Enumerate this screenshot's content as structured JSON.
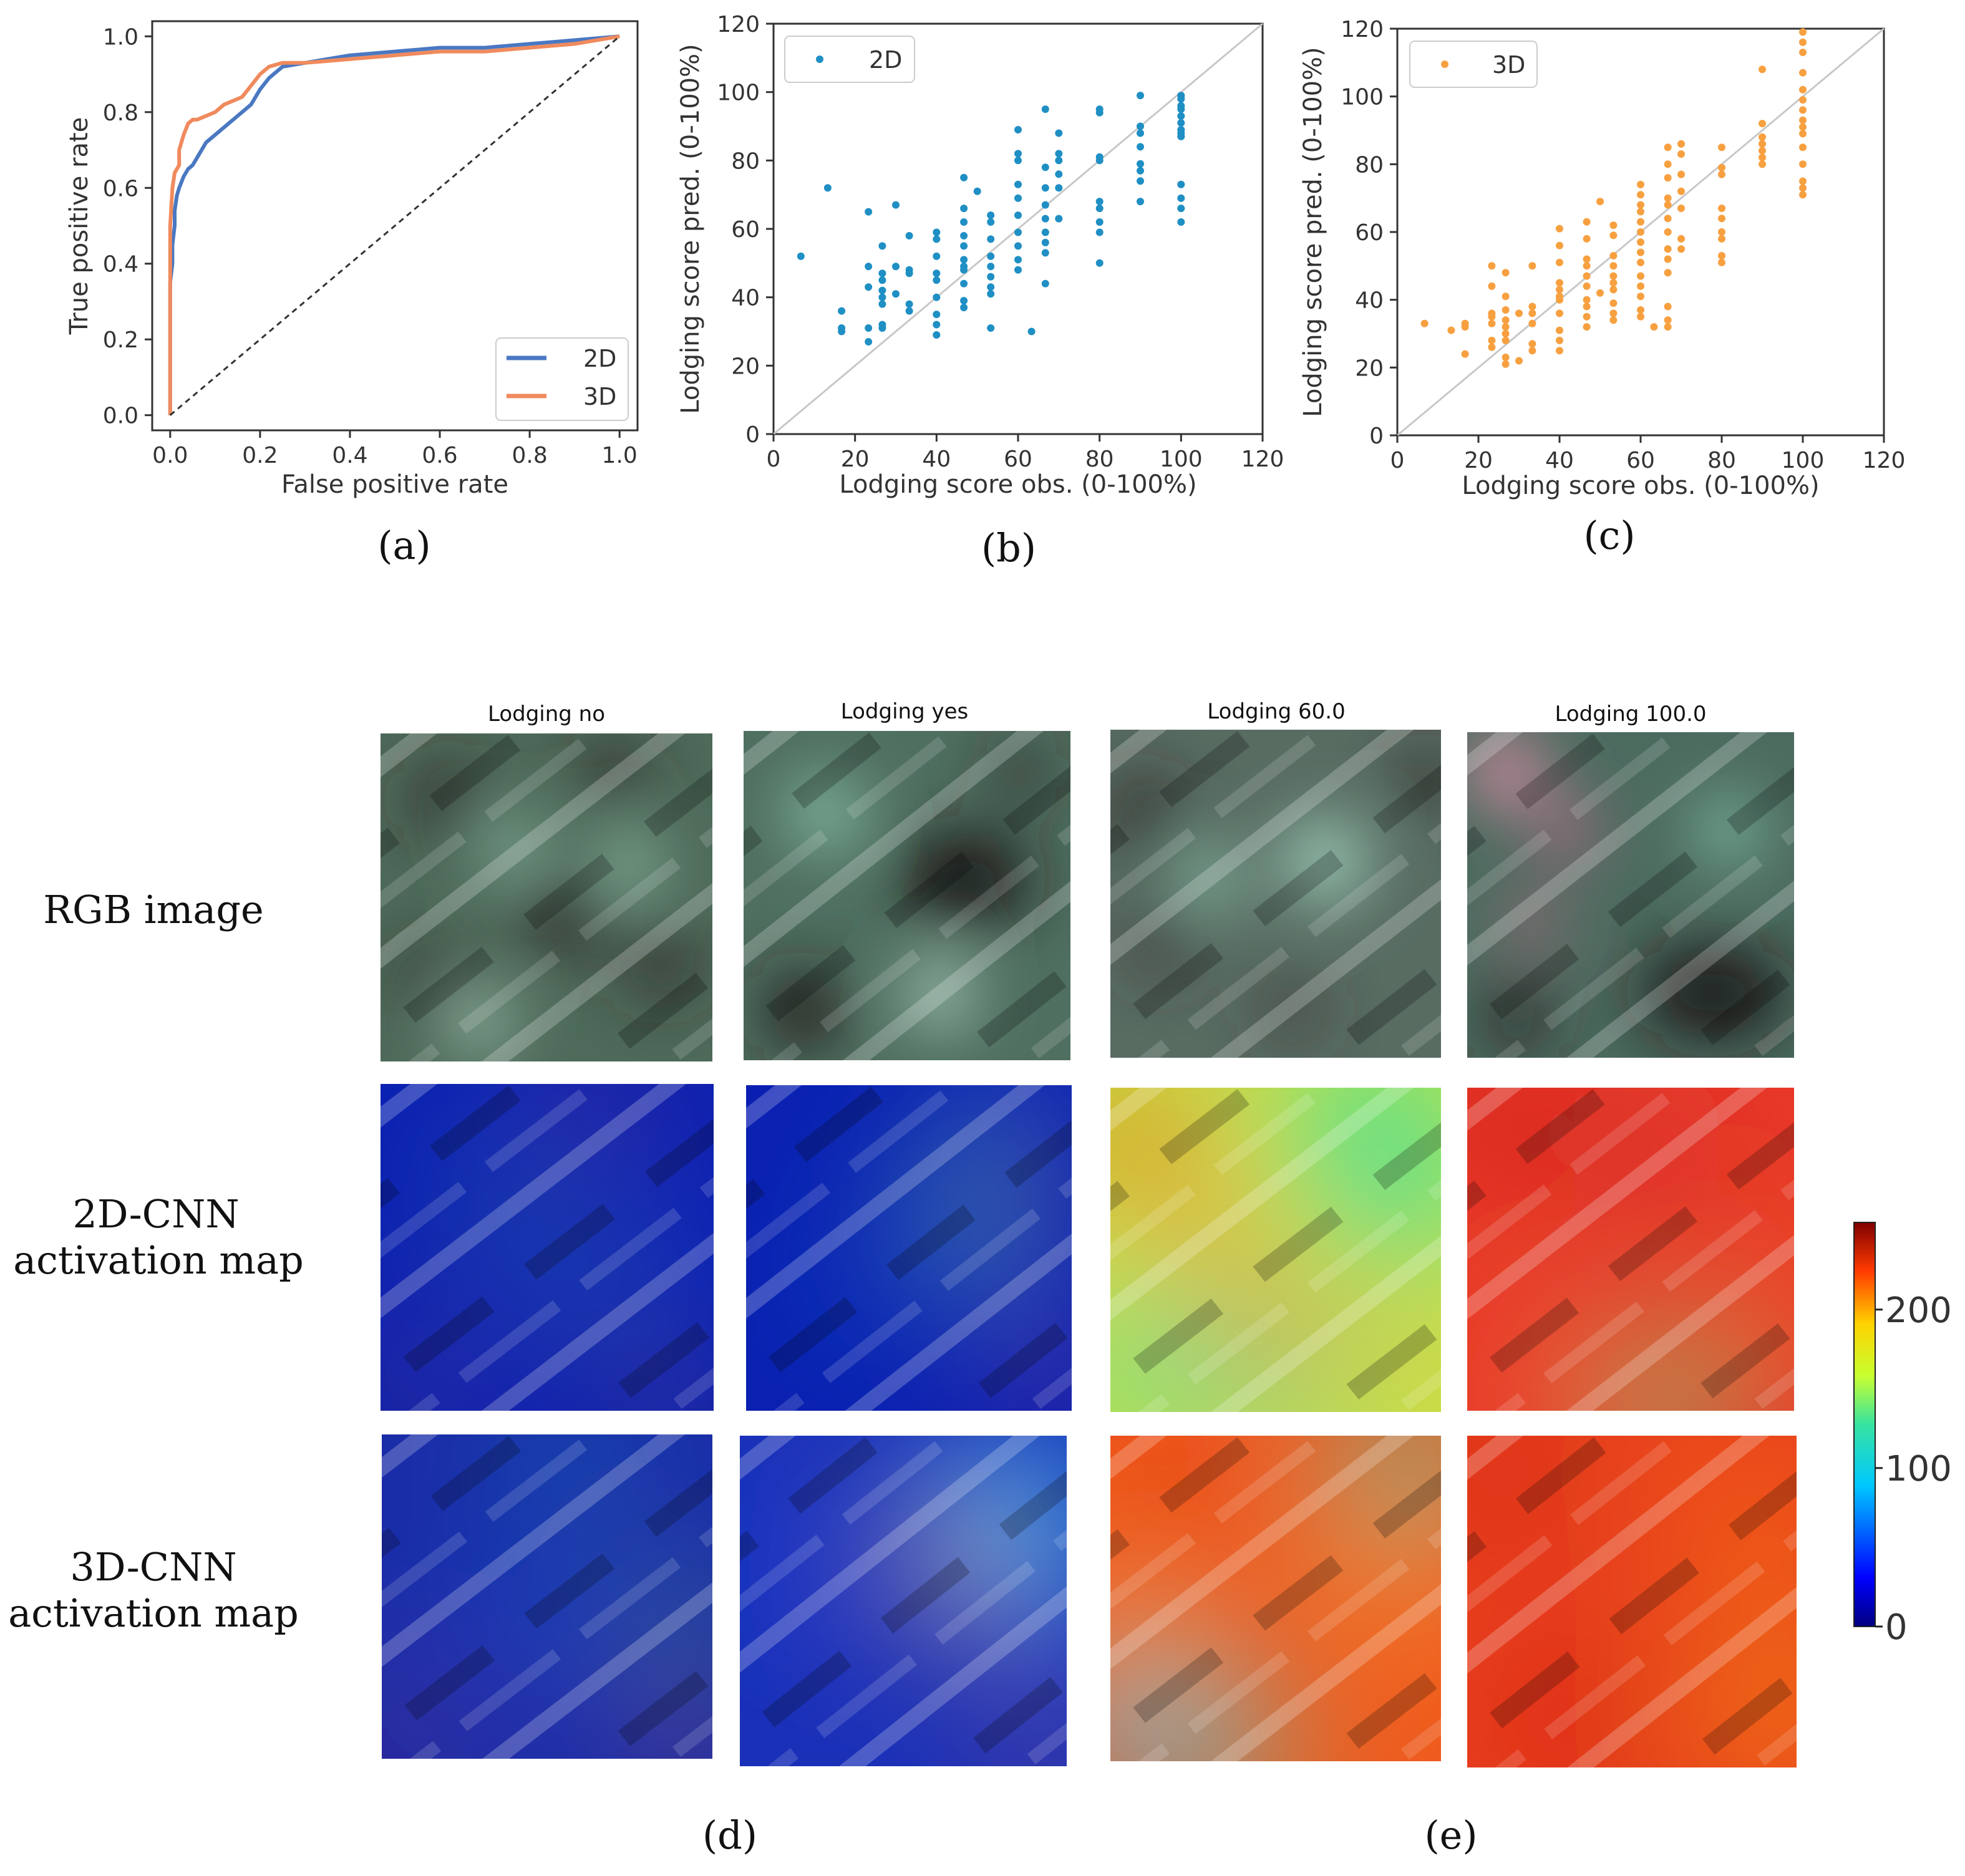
{
  "captions": {
    "a": "(a)",
    "b": "(b)",
    "c": "(c)",
    "d": "(d)",
    "e": "(e)"
  },
  "colors": {
    "series_2d_line": "#4a78c2",
    "series_3d_line": "#f08a5d",
    "scatter_2d": "#1f8fc4",
    "scatter_3d": "#f7a040",
    "diagonal": "#c8c8c8",
    "chance": "#333333"
  },
  "chart_data": [
    {
      "id": "roc",
      "type": "line",
      "title": "",
      "xlabel": "False positive rate",
      "ylabel": "True positive rate",
      "xlim": [
        -0.04,
        1.04
      ],
      "ylim": [
        -0.04,
        1.04
      ],
      "xticks": [
        0.0,
        0.2,
        0.4,
        0.6,
        0.8,
        1.0
      ],
      "yticks": [
        0.0,
        0.2,
        0.4,
        0.6,
        0.8,
        1.0
      ],
      "tick_labels": [
        "0.0",
        "0.2",
        "0.4",
        "0.6",
        "0.8",
        "1.0"
      ],
      "legend": [
        "2D",
        "3D"
      ],
      "legend_position": "lower-right",
      "series": [
        {
          "name": "2D",
          "x": [
            0,
            0,
            0.005,
            0.005,
            0.01,
            0.01,
            0.015,
            0.02,
            0.03,
            0.04,
            0.05,
            0.06,
            0.08,
            0.1,
            0.12,
            0.14,
            0.16,
            0.18,
            0.2,
            0.22,
            0.25,
            0.3,
            0.35,
            0.4,
            0.5,
            0.55,
            0.6,
            0.7,
            0.8,
            0.9,
            1.0
          ],
          "y": [
            0,
            0.35,
            0.4,
            0.45,
            0.5,
            0.54,
            0.58,
            0.6,
            0.63,
            0.65,
            0.66,
            0.68,
            0.72,
            0.74,
            0.76,
            0.78,
            0.8,
            0.82,
            0.86,
            0.89,
            0.92,
            0.93,
            0.94,
            0.95,
            0.96,
            0.965,
            0.97,
            0.97,
            0.98,
            0.99,
            1.0
          ]
        },
        {
          "name": "3D",
          "x": [
            0,
            0,
            0.005,
            0.01,
            0.02,
            0.02,
            0.03,
            0.04,
            0.05,
            0.06,
            0.08,
            0.1,
            0.12,
            0.14,
            0.16,
            0.18,
            0.2,
            0.22,
            0.25,
            0.3,
            0.4,
            0.5,
            0.6,
            0.7,
            0.8,
            0.9,
            1.0
          ],
          "y": [
            0,
            0.5,
            0.6,
            0.64,
            0.66,
            0.7,
            0.74,
            0.77,
            0.78,
            0.78,
            0.79,
            0.8,
            0.82,
            0.83,
            0.84,
            0.87,
            0.9,
            0.92,
            0.93,
            0.93,
            0.94,
            0.95,
            0.96,
            0.96,
            0.97,
            0.98,
            1.0
          ]
        },
        {
          "name": "chance",
          "x": [
            0,
            1
          ],
          "y": [
            0,
            1
          ]
        }
      ]
    },
    {
      "id": "scatter2d",
      "type": "scatter",
      "xlabel": "Lodging score obs. (0-100%)",
      "ylabel": "Lodging score pred. (0-100%)",
      "xlim": [
        0,
        120
      ],
      "ylim": [
        0,
        120
      ],
      "xticks": [
        0,
        20,
        40,
        60,
        80,
        100,
        120
      ],
      "yticks": [
        0,
        20,
        40,
        60,
        80,
        100,
        120
      ],
      "tick_labels": [
        "0",
        "20",
        "40",
        "60",
        "80",
        "100",
        "120"
      ],
      "legend": [
        "2D"
      ],
      "legend_position": "top-left",
      "points": [
        [
          6.7,
          52
        ],
        [
          13.3,
          72
        ],
        [
          16.7,
          36
        ],
        [
          16.7,
          31
        ],
        [
          16.7,
          30
        ],
        [
          23.3,
          65
        ],
        [
          23.3,
          49
        ],
        [
          23.3,
          43
        ],
        [
          23.3,
          31
        ],
        [
          23.3,
          27
        ],
        [
          26.7,
          55
        ],
        [
          26.7,
          47
        ],
        [
          26.7,
          45
        ],
        [
          26.7,
          42
        ],
        [
          26.7,
          40
        ],
        [
          26.7,
          38
        ],
        [
          26.7,
          32
        ],
        [
          26.7,
          31
        ],
        [
          30,
          67
        ],
        [
          30,
          49
        ],
        [
          30,
          41
        ],
        [
          33.3,
          58
        ],
        [
          33.3,
          48
        ],
        [
          33.3,
          47
        ],
        [
          33.3,
          38
        ],
        [
          33.3,
          36
        ],
        [
          40,
          59
        ],
        [
          40,
          57
        ],
        [
          40,
          52
        ],
        [
          40,
          47
        ],
        [
          40,
          45
        ],
        [
          40,
          40
        ],
        [
          40,
          35
        ],
        [
          40,
          32
        ],
        [
          40,
          29
        ],
        [
          46.7,
          75
        ],
        [
          46.7,
          66
        ],
        [
          46.7,
          62
        ],
        [
          46.7,
          58
        ],
        [
          46.7,
          55
        ],
        [
          46.7,
          51
        ],
        [
          46.7,
          49
        ],
        [
          46.7,
          48
        ],
        [
          46.7,
          44
        ],
        [
          46.7,
          39
        ],
        [
          46.7,
          37
        ],
        [
          50,
          71
        ],
        [
          53.3,
          64
        ],
        [
          53.3,
          62
        ],
        [
          53.3,
          57
        ],
        [
          53.3,
          52
        ],
        [
          53.3,
          49
        ],
        [
          53.3,
          46
        ],
        [
          53.3,
          43
        ],
        [
          53.3,
          41
        ],
        [
          53.3,
          31
        ],
        [
          60,
          89
        ],
        [
          60,
          82
        ],
        [
          60,
          80
        ],
        [
          60,
          73
        ],
        [
          60,
          69
        ],
        [
          60,
          64
        ],
        [
          60,
          59
        ],
        [
          60,
          55
        ],
        [
          60,
          51
        ],
        [
          60,
          48
        ],
        [
          63.3,
          30
        ],
        [
          66.7,
          95
        ],
        [
          66.7,
          78
        ],
        [
          66.7,
          72
        ],
        [
          66.7,
          67
        ],
        [
          66.7,
          63
        ],
        [
          66.7,
          59
        ],
        [
          66.7,
          56
        ],
        [
          66.7,
          53
        ],
        [
          66.7,
          44
        ],
        [
          70,
          88
        ],
        [
          70,
          82
        ],
        [
          70,
          80
        ],
        [
          70,
          76
        ],
        [
          70,
          72
        ],
        [
          70,
          63
        ],
        [
          80,
          95
        ],
        [
          80,
          94
        ],
        [
          80,
          81
        ],
        [
          80,
          80
        ],
        [
          80,
          68
        ],
        [
          80,
          66
        ],
        [
          80,
          62
        ],
        [
          80,
          59
        ],
        [
          80,
          50
        ],
        [
          90,
          99
        ],
        [
          90,
          90
        ],
        [
          90,
          88
        ],
        [
          90,
          84
        ],
        [
          90,
          79
        ],
        [
          90,
          77
        ],
        [
          90,
          74
        ],
        [
          90,
          68
        ],
        [
          100,
          99
        ],
        [
          100,
          98
        ],
        [
          100,
          96
        ],
        [
          100,
          95
        ],
        [
          100,
          93
        ],
        [
          100,
          91
        ],
        [
          100,
          89
        ],
        [
          100,
          88
        ],
        [
          100,
          87
        ],
        [
          100,
          73
        ],
        [
          100,
          69
        ],
        [
          100,
          66
        ],
        [
          100,
          62
        ]
      ]
    },
    {
      "id": "scatter3d",
      "type": "scatter",
      "xlabel": "Lodging score obs. (0-100%)",
      "ylabel": "Lodging score pred. (0-100%)",
      "xlim": [
        0,
        120
      ],
      "ylim": [
        0,
        120
      ],
      "xticks": [
        0,
        20,
        40,
        60,
        80,
        100,
        120
      ],
      "yticks": [
        0,
        20,
        40,
        60,
        80,
        100,
        120
      ],
      "tick_labels": [
        "0",
        "20",
        "40",
        "60",
        "80",
        "100",
        "120"
      ],
      "legend": [
        "3D"
      ],
      "legend_position": "top-left",
      "points": [
        [
          6.7,
          33
        ],
        [
          13.3,
          31
        ],
        [
          16.7,
          33
        ],
        [
          16.7,
          32
        ],
        [
          16.7,
          24
        ],
        [
          23.3,
          50
        ],
        [
          23.3,
          44
        ],
        [
          23.3,
          36
        ],
        [
          23.3,
          35
        ],
        [
          23.3,
          33
        ],
        [
          23.3,
          28
        ],
        [
          23.3,
          26
        ],
        [
          26.7,
          48
        ],
        [
          26.7,
          41
        ],
        [
          26.7,
          37
        ],
        [
          26.7,
          34
        ],
        [
          26.7,
          32
        ],
        [
          26.7,
          30
        ],
        [
          26.7,
          28
        ],
        [
          26.7,
          23
        ],
        [
          26.7,
          21
        ],
        [
          30,
          22
        ],
        [
          30,
          36
        ],
        [
          33.3,
          50
        ],
        [
          33.3,
          38
        ],
        [
          33.3,
          36
        ],
        [
          33.3,
          33
        ],
        [
          33.3,
          27
        ],
        [
          33.3,
          25
        ],
        [
          40,
          61
        ],
        [
          40,
          56
        ],
        [
          40,
          51
        ],
        [
          40,
          45
        ],
        [
          40,
          43
        ],
        [
          40,
          41
        ],
        [
          40,
          40
        ],
        [
          40,
          36
        ],
        [
          40,
          31
        ],
        [
          40,
          28
        ],
        [
          40,
          25
        ],
        [
          46.7,
          63
        ],
        [
          46.7,
          58
        ],
        [
          46.7,
          52
        ],
        [
          46.7,
          50
        ],
        [
          46.7,
          47
        ],
        [
          46.7,
          44
        ],
        [
          46.7,
          40
        ],
        [
          46.7,
          38
        ],
        [
          46.7,
          35
        ],
        [
          46.7,
          32
        ],
        [
          50,
          69
        ],
        [
          50,
          42
        ],
        [
          53.3,
          62
        ],
        [
          53.3,
          59
        ],
        [
          53.3,
          53
        ],
        [
          53.3,
          50
        ],
        [
          53.3,
          47
        ],
        [
          53.3,
          45
        ],
        [
          53.3,
          43
        ],
        [
          53.3,
          39
        ],
        [
          53.3,
          36
        ],
        [
          53.3,
          34
        ],
        [
          60,
          74
        ],
        [
          60,
          71
        ],
        [
          60,
          68
        ],
        [
          60,
          66
        ],
        [
          60,
          63
        ],
        [
          60,
          60
        ],
        [
          60,
          57
        ],
        [
          60,
          54
        ],
        [
          60,
          51
        ],
        [
          60,
          47
        ],
        [
          60,
          44
        ],
        [
          60,
          41
        ],
        [
          60,
          37
        ],
        [
          60,
          35
        ],
        [
          63.3,
          32
        ],
        [
          66.7,
          85
        ],
        [
          66.7,
          80
        ],
        [
          66.7,
          76
        ],
        [
          66.7,
          70
        ],
        [
          66.7,
          68
        ],
        [
          66.7,
          64
        ],
        [
          66.7,
          60
        ],
        [
          66.7,
          55
        ],
        [
          66.7,
          52
        ],
        [
          66.7,
          48
        ],
        [
          66.7,
          38
        ],
        [
          66.7,
          34
        ],
        [
          66.7,
          32
        ],
        [
          70,
          86
        ],
        [
          70,
          83
        ],
        [
          70,
          77
        ],
        [
          70,
          72
        ],
        [
          70,
          67
        ],
        [
          70,
          58
        ],
        [
          70,
          55
        ],
        [
          80,
          85
        ],
        [
          80,
          79
        ],
        [
          80,
          77
        ],
        [
          80,
          67
        ],
        [
          80,
          64
        ],
        [
          80,
          60
        ],
        [
          80,
          58
        ],
        [
          80,
          53
        ],
        [
          80,
          51
        ],
        [
          90,
          108
        ],
        [
          90,
          92
        ],
        [
          90,
          88
        ],
        [
          90,
          86
        ],
        [
          90,
          84
        ],
        [
          90,
          82
        ],
        [
          90,
          80
        ],
        [
          100,
          119
        ],
        [
          100,
          116
        ],
        [
          100,
          113
        ],
        [
          100,
          107
        ],
        [
          100,
          102
        ],
        [
          100,
          99
        ],
        [
          100,
          96
        ],
        [
          100,
          93
        ],
        [
          100,
          91
        ],
        [
          100,
          89
        ],
        [
          100,
          85
        ],
        [
          100,
          80
        ],
        [
          100,
          75
        ],
        [
          100,
          73
        ],
        [
          100,
          71
        ]
      ]
    }
  ],
  "activation_grid": {
    "column_titles": [
      "Lodging no",
      "Lodging yes",
      "Lodging 60.0",
      "Lodging 100.0"
    ],
    "row_labels": [
      {
        "line1": "RGB image",
        "line2": ""
      },
      {
        "line1": "2D-CNN",
        "line2": "activation map"
      },
      {
        "line1": "3D-CNN",
        "line2": "activation map"
      }
    ],
    "colorbar": {
      "ticks": [
        0,
        100,
        200
      ],
      "tick_labels": [
        "0",
        "100",
        "200"
      ],
      "range": [
        0,
        255
      ],
      "colormap": "jet"
    }
  }
}
